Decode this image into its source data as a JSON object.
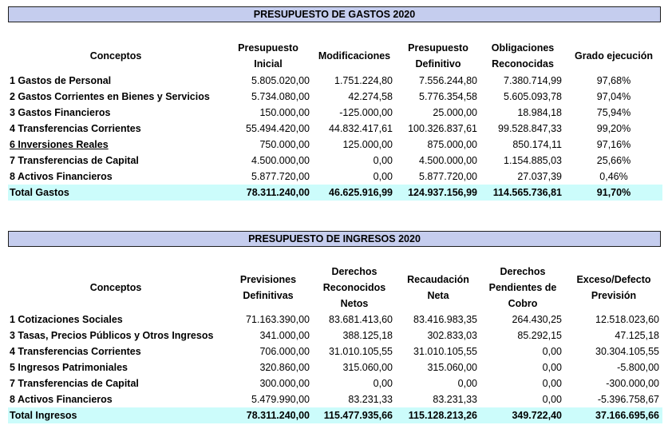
{
  "gastos": {
    "title": "PRESUPUESTO DE GASTOS 2020",
    "headers": {
      "conceptos": "Conceptos",
      "presupuesto_inicial": [
        "Presupuesto",
        "Inicial"
      ],
      "modificaciones": "Modificaciones",
      "presupuesto_definitivo": [
        "Presupuesto",
        "Definitivo"
      ],
      "obligaciones": [
        "Obligaciones",
        "Reconocidas"
      ],
      "grado": "Grado ejecución"
    },
    "rows": [
      {
        "concepto": "1 Gastos de Personal",
        "inicial": "5.805.020,00",
        "modif": "1.751.224,80",
        "definitivo": "7.556.244,80",
        "obligaciones": "7.380.714,99",
        "grado": "97,68%"
      },
      {
        "concepto": "2 Gastos Corrientes en Bienes y Servicios",
        "inicial": "5.734.080,00",
        "modif": "42.274,58",
        "definitivo": "5.776.354,58",
        "obligaciones": "5.605.093,78",
        "grado": "97,04%"
      },
      {
        "concepto": "3 Gastos Financieros",
        "inicial": "150.000,00",
        "modif": "-125.000,00",
        "definitivo": "25.000,00",
        "obligaciones": "18.984,18",
        "grado": "75,94%"
      },
      {
        "concepto": "4 Transferencias Corrientes",
        "inicial": "55.494.420,00",
        "modif": "44.832.417,61",
        "definitivo": "100.326.837,61",
        "obligaciones": "99.528.847,33",
        "grado": "99,20%"
      },
      {
        "concepto": "6 Inversiones Reales",
        "inicial": "750.000,00",
        "modif": "125.000,00",
        "definitivo": "875.000,00",
        "obligaciones": "850.174,11",
        "grado": "97,16%"
      },
      {
        "concepto": "7 Transferencias de Capital",
        "inicial": "4.500.000,00",
        "modif": "0,00",
        "definitivo": "4.500.000,00",
        "obligaciones": "1.154.885,03",
        "grado": "25,66%"
      },
      {
        "concepto": "8 Activos Financieros",
        "inicial": "5.877.720,00",
        "modif": "0,00",
        "definitivo": "5.877.720,00",
        "obligaciones": "27.037,39",
        "grado": "0,46%"
      }
    ],
    "total": {
      "concepto": "Total Gastos",
      "inicial": "78.311.240,00",
      "modif": "46.625.916,99",
      "definitivo": "124.937.156,99",
      "obligaciones": "114.565.736,81",
      "grado": "91,70%"
    }
  },
  "ingresos": {
    "title": "PRESUPUESTO DE INGRESOS 2020",
    "headers": {
      "conceptos": "Conceptos",
      "previsiones": [
        "Previsiones",
        "Definitivas"
      ],
      "derechos": [
        "Derechos",
        "Reconocidos",
        "Netos"
      ],
      "recaudacion": [
        "Recaudación",
        "Neta"
      ],
      "pendientes": [
        "Derechos",
        "Pendientes de",
        "Cobro"
      ],
      "exceso": [
        "Exceso/Defecto",
        "Previsión"
      ]
    },
    "rows": [
      {
        "concepto": "1 Cotizaciones Sociales",
        "previsiones": "71.163.390,00",
        "derechos": "83.681.413,60",
        "recaudacion": "83.416.983,35",
        "pendientes": "264.430,25",
        "exceso": "12.518.023,60"
      },
      {
        "concepto": "3 Tasas, Precios Públicos y Otros Ingresos",
        "previsiones": "341.000,00",
        "derechos": "388.125,18",
        "recaudacion": "302.833,03",
        "pendientes": "85.292,15",
        "exceso": "47.125,18"
      },
      {
        "concepto": "4 Transferencias Corrientes",
        "previsiones": "706.000,00",
        "derechos": "31.010.105,55",
        "recaudacion": "31.010.105,55",
        "pendientes": "0,00",
        "exceso": "30.304.105,55"
      },
      {
        "concepto": "5 Ingresos Patrimoniales",
        "previsiones": "320.860,00",
        "derechos": "315.060,00",
        "recaudacion": "315.060,00",
        "pendientes": "0,00",
        "exceso": "-5.800,00"
      },
      {
        "concepto": "7 Transferencias de Capital",
        "previsiones": "300.000,00",
        "derechos": "0,00",
        "recaudacion": "0,00",
        "pendientes": "0,00",
        "exceso": "-300.000,00"
      },
      {
        "concepto": "8 Activos Financieros",
        "previsiones": "5.479.990,00",
        "derechos": "83.231,33",
        "recaudacion": "83.231,33",
        "pendientes": "0,00",
        "exceso": "-5.396.758,67"
      }
    ],
    "total": {
      "concepto": "Total Ingresos",
      "previsiones": "78.311.240,00",
      "derechos": "115.477.935,66",
      "recaudacion": "115.128.213,26",
      "pendientes": "349.722,40",
      "exceso": "37.166.695,66"
    }
  }
}
